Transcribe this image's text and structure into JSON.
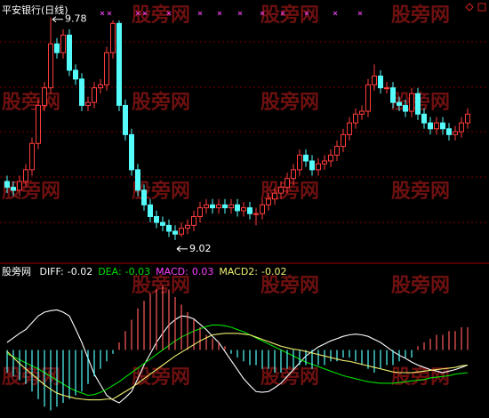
{
  "watermark": "股旁网",
  "chart_data": [
    {
      "type": "candlestick",
      "title": "平安银行(日线)",
      "up_color": "#ff3c3c",
      "down_color": "#54fcfc",
      "ylim": [
        8.98,
        9.84
      ],
      "open": [
        9.22,
        9.2,
        9.19,
        9.22,
        9.26,
        9.35,
        9.48,
        9.54,
        9.69,
        9.66,
        9.72,
        9.6,
        9.57,
        9.48,
        9.49,
        9.54,
        9.55,
        9.66,
        9.76,
        9.48,
        9.38,
        9.26,
        9.19,
        9.14,
        9.1,
        9.08,
        9.07,
        9.05,
        9.04,
        9.06,
        9.07,
        9.1,
        9.13,
        9.14,
        9.13,
        9.14,
        9.13,
        9.14,
        9.12,
        9.13,
        9.11,
        9.11,
        9.14,
        9.16,
        9.18,
        9.2,
        9.23,
        9.26,
        9.31,
        9.29,
        9.26,
        9.28,
        9.29,
        9.31,
        9.34,
        9.38,
        9.42,
        9.45,
        9.46,
        9.55,
        9.58,
        9.54,
        9.54,
        9.49,
        9.48,
        9.46,
        9.52,
        9.45,
        9.42,
        9.4,
        9.42,
        9.4,
        9.38,
        9.39,
        9.42
      ],
      "high": [
        9.24,
        9.22,
        9.24,
        9.28,
        9.37,
        9.5,
        9.56,
        9.78,
        9.71,
        9.74,
        9.74,
        9.62,
        9.59,
        9.51,
        9.56,
        9.57,
        9.68,
        9.77,
        9.77,
        9.5,
        9.4,
        9.28,
        9.21,
        9.16,
        9.12,
        9.1,
        9.09,
        9.07,
        9.08,
        9.09,
        9.12,
        9.15,
        9.16,
        9.16,
        9.16,
        9.16,
        9.16,
        9.16,
        9.15,
        9.15,
        9.13,
        9.16,
        9.18,
        9.2,
        9.22,
        9.25,
        9.28,
        9.33,
        9.33,
        9.31,
        9.3,
        9.31,
        9.33,
        9.36,
        9.4,
        9.44,
        9.47,
        9.48,
        9.57,
        9.62,
        9.6,
        9.56,
        9.56,
        9.51,
        9.5,
        9.54,
        9.54,
        9.47,
        9.44,
        9.44,
        9.44,
        9.42,
        9.41,
        9.44,
        9.47
      ],
      "low": [
        9.18,
        9.17,
        9.17,
        9.2,
        9.24,
        9.33,
        9.46,
        9.52,
        9.64,
        9.64,
        9.58,
        9.55,
        9.46,
        9.46,
        9.47,
        9.52,
        9.53,
        9.64,
        9.46,
        9.36,
        9.24,
        9.17,
        9.12,
        9.08,
        9.06,
        9.05,
        9.03,
        9.02,
        9.03,
        9.04,
        9.05,
        9.08,
        9.11,
        9.11,
        9.11,
        9.11,
        9.11,
        9.1,
        9.1,
        9.09,
        9.07,
        9.09,
        9.12,
        9.14,
        9.16,
        9.18,
        9.21,
        9.24,
        9.27,
        9.24,
        9.24,
        9.26,
        9.27,
        9.29,
        9.32,
        9.36,
        9.4,
        9.43,
        9.44,
        9.53,
        9.52,
        9.52,
        9.47,
        9.46,
        9.44,
        9.44,
        9.43,
        9.4,
        9.38,
        9.38,
        9.38,
        9.36,
        9.36,
        9.37,
        9.4
      ],
      "close": [
        9.2,
        9.19,
        9.22,
        9.26,
        9.35,
        9.48,
        9.54,
        9.69,
        9.66,
        9.72,
        9.6,
        9.57,
        9.48,
        9.49,
        9.54,
        9.55,
        9.66,
        9.76,
        9.48,
        9.38,
        9.26,
        9.19,
        9.14,
        9.1,
        9.08,
        9.07,
        9.05,
        9.04,
        9.06,
        9.07,
        9.1,
        9.13,
        9.14,
        9.13,
        9.14,
        9.13,
        9.14,
        9.12,
        9.13,
        9.11,
        9.11,
        9.14,
        9.16,
        9.18,
        9.2,
        9.23,
        9.26,
        9.31,
        9.29,
        9.26,
        9.28,
        9.29,
        9.31,
        9.34,
        9.38,
        9.42,
        9.45,
        9.46,
        9.55,
        9.58,
        9.54,
        9.54,
        9.49,
        9.48,
        9.46,
        9.52,
        9.45,
        9.42,
        9.4,
        9.42,
        9.4,
        9.38,
        9.39,
        9.42,
        9.45
      ]
    },
    {
      "type": "macd",
      "ylim": [
        -0.09,
        0.11
      ],
      "series": [
        {
          "name": "DIFF:",
          "color": "#ffffff",
          "type": "line",
          "values": [
            0.01,
            0.016,
            0.022,
            0.027,
            0.036,
            0.045,
            0.05,
            0.052,
            0.053,
            0.05,
            0.045,
            0.028,
            0.01,
            -0.011,
            -0.032,
            -0.046,
            -0.06,
            -0.066,
            -0.07,
            -0.063,
            -0.055,
            -0.038,
            -0.02,
            -0.005,
            0.01,
            0.022,
            0.033,
            0.04,
            0.045,
            0.044,
            0.041,
            0.034,
            0.027,
            0.018,
            0.01,
            -0.002,
            -0.014,
            -0.026,
            -0.038,
            -0.047,
            -0.055,
            -0.056,
            -0.055,
            -0.05,
            -0.044,
            -0.035,
            -0.026,
            -0.017,
            -0.008,
            -0.002,
            0.004,
            0.008,
            0.012,
            0.015,
            0.018,
            0.02,
            0.021,
            0.02,
            0.018,
            0.014,
            0.01,
            0.004,
            -0.002,
            -0.007,
            -0.011,
            -0.016,
            -0.02,
            -0.023,
            -0.026,
            -0.028,
            -0.03,
            -0.028,
            -0.026,
            -0.023,
            -0.02
          ]
        },
        {
          "name": "DEA:",
          "color": "#00e000",
          "type": "line",
          "values": [
            -0.005,
            -0.009,
            -0.013,
            -0.017,
            -0.021,
            -0.025,
            -0.03,
            -0.035,
            -0.04,
            -0.045,
            -0.05,
            -0.054,
            -0.057,
            -0.06,
            -0.059,
            -0.056,
            -0.052,
            -0.047,
            -0.042,
            -0.036,
            -0.03,
            -0.024,
            -0.018,
            -0.012,
            -0.006,
            0.0,
            0.006,
            0.012,
            0.017,
            0.021,
            0.025,
            0.028,
            0.031,
            0.033,
            0.033,
            0.032,
            0.03,
            0.027,
            0.024,
            0.02,
            0.016,
            0.012,
            0.008,
            0.004,
            0.0,
            -0.004,
            -0.008,
            -0.012,
            -0.016,
            -0.019,
            -0.022,
            -0.025,
            -0.028,
            -0.031,
            -0.034,
            -0.036,
            -0.038,
            -0.04,
            -0.042,
            -0.043,
            -0.044,
            -0.044,
            -0.044,
            -0.043,
            -0.042,
            -0.041,
            -0.04,
            -0.039,
            -0.037,
            -0.036,
            -0.035,
            -0.034,
            -0.032,
            -0.031,
            -0.03
          ]
        },
        {
          "name": "MACD:",
          "color": "#ff40ff",
          "type": "bar",
          "up_color": "#ff5a5a",
          "down_color": "#54fcfc",
          "values": [
            -0.03,
            -0.035,
            -0.04,
            -0.045,
            -0.055,
            -0.065,
            -0.075,
            -0.08,
            -0.075,
            -0.07,
            -0.065,
            -0.06,
            -0.055,
            -0.045,
            -0.035,
            -0.025,
            -0.015,
            -0.005,
            0.01,
            0.025,
            0.04,
            0.055,
            0.065,
            0.075,
            0.08,
            0.085,
            0.08,
            0.07,
            0.06,
            0.05,
            0.04,
            0.03,
            0.02,
            0.015,
            0.01,
            0.005,
            -0.005,
            -0.01,
            -0.015,
            -0.02,
            -0.02,
            -0.025,
            -0.025,
            -0.03,
            -0.03,
            -0.025,
            -0.025,
            -0.02,
            -0.02,
            -0.025,
            -0.02,
            -0.02,
            -0.015,
            -0.015,
            -0.01,
            -0.01,
            -0.015,
            -0.02,
            -0.025,
            -0.03,
            -0.025,
            -0.02,
            -0.02,
            -0.015,
            -0.01,
            -0.01,
            0.005,
            0.01,
            0.015,
            0.02,
            0.02,
            0.025,
            0.025,
            0.03,
            0.03
          ]
        },
        {
          "name": "MACD2:",
          "color": "#f0f070",
          "type": "line",
          "values": [
            -0.002,
            -0.01,
            -0.018,
            -0.025,
            -0.032,
            -0.039,
            -0.046,
            -0.052,
            -0.057,
            -0.06,
            -0.062,
            -0.064,
            -0.065,
            -0.066,
            -0.066,
            -0.066,
            -0.065,
            -0.065,
            -0.06,
            -0.055,
            -0.05,
            -0.044,
            -0.038,
            -0.032,
            -0.026,
            -0.02,
            -0.014,
            -0.008,
            -0.003,
            0.002,
            0.007,
            0.012,
            0.016,
            0.02,
            0.021,
            0.022,
            0.022,
            0.022,
            0.021,
            0.02,
            0.017,
            0.014,
            0.011,
            0.008,
            0.005,
            0.003,
            0.001,
            0.0,
            -0.002,
            -0.004,
            -0.006,
            -0.008,
            -0.01,
            -0.012,
            -0.014,
            -0.015,
            -0.017,
            -0.019,
            -0.021,
            -0.023,
            -0.025,
            -0.027,
            -0.029,
            -0.03,
            -0.03,
            -0.03,
            -0.029,
            -0.028,
            -0.027,
            -0.026,
            -0.025,
            -0.024,
            -0.023,
            -0.021,
            -0.02
          ]
        }
      ]
    }
  ]
}
